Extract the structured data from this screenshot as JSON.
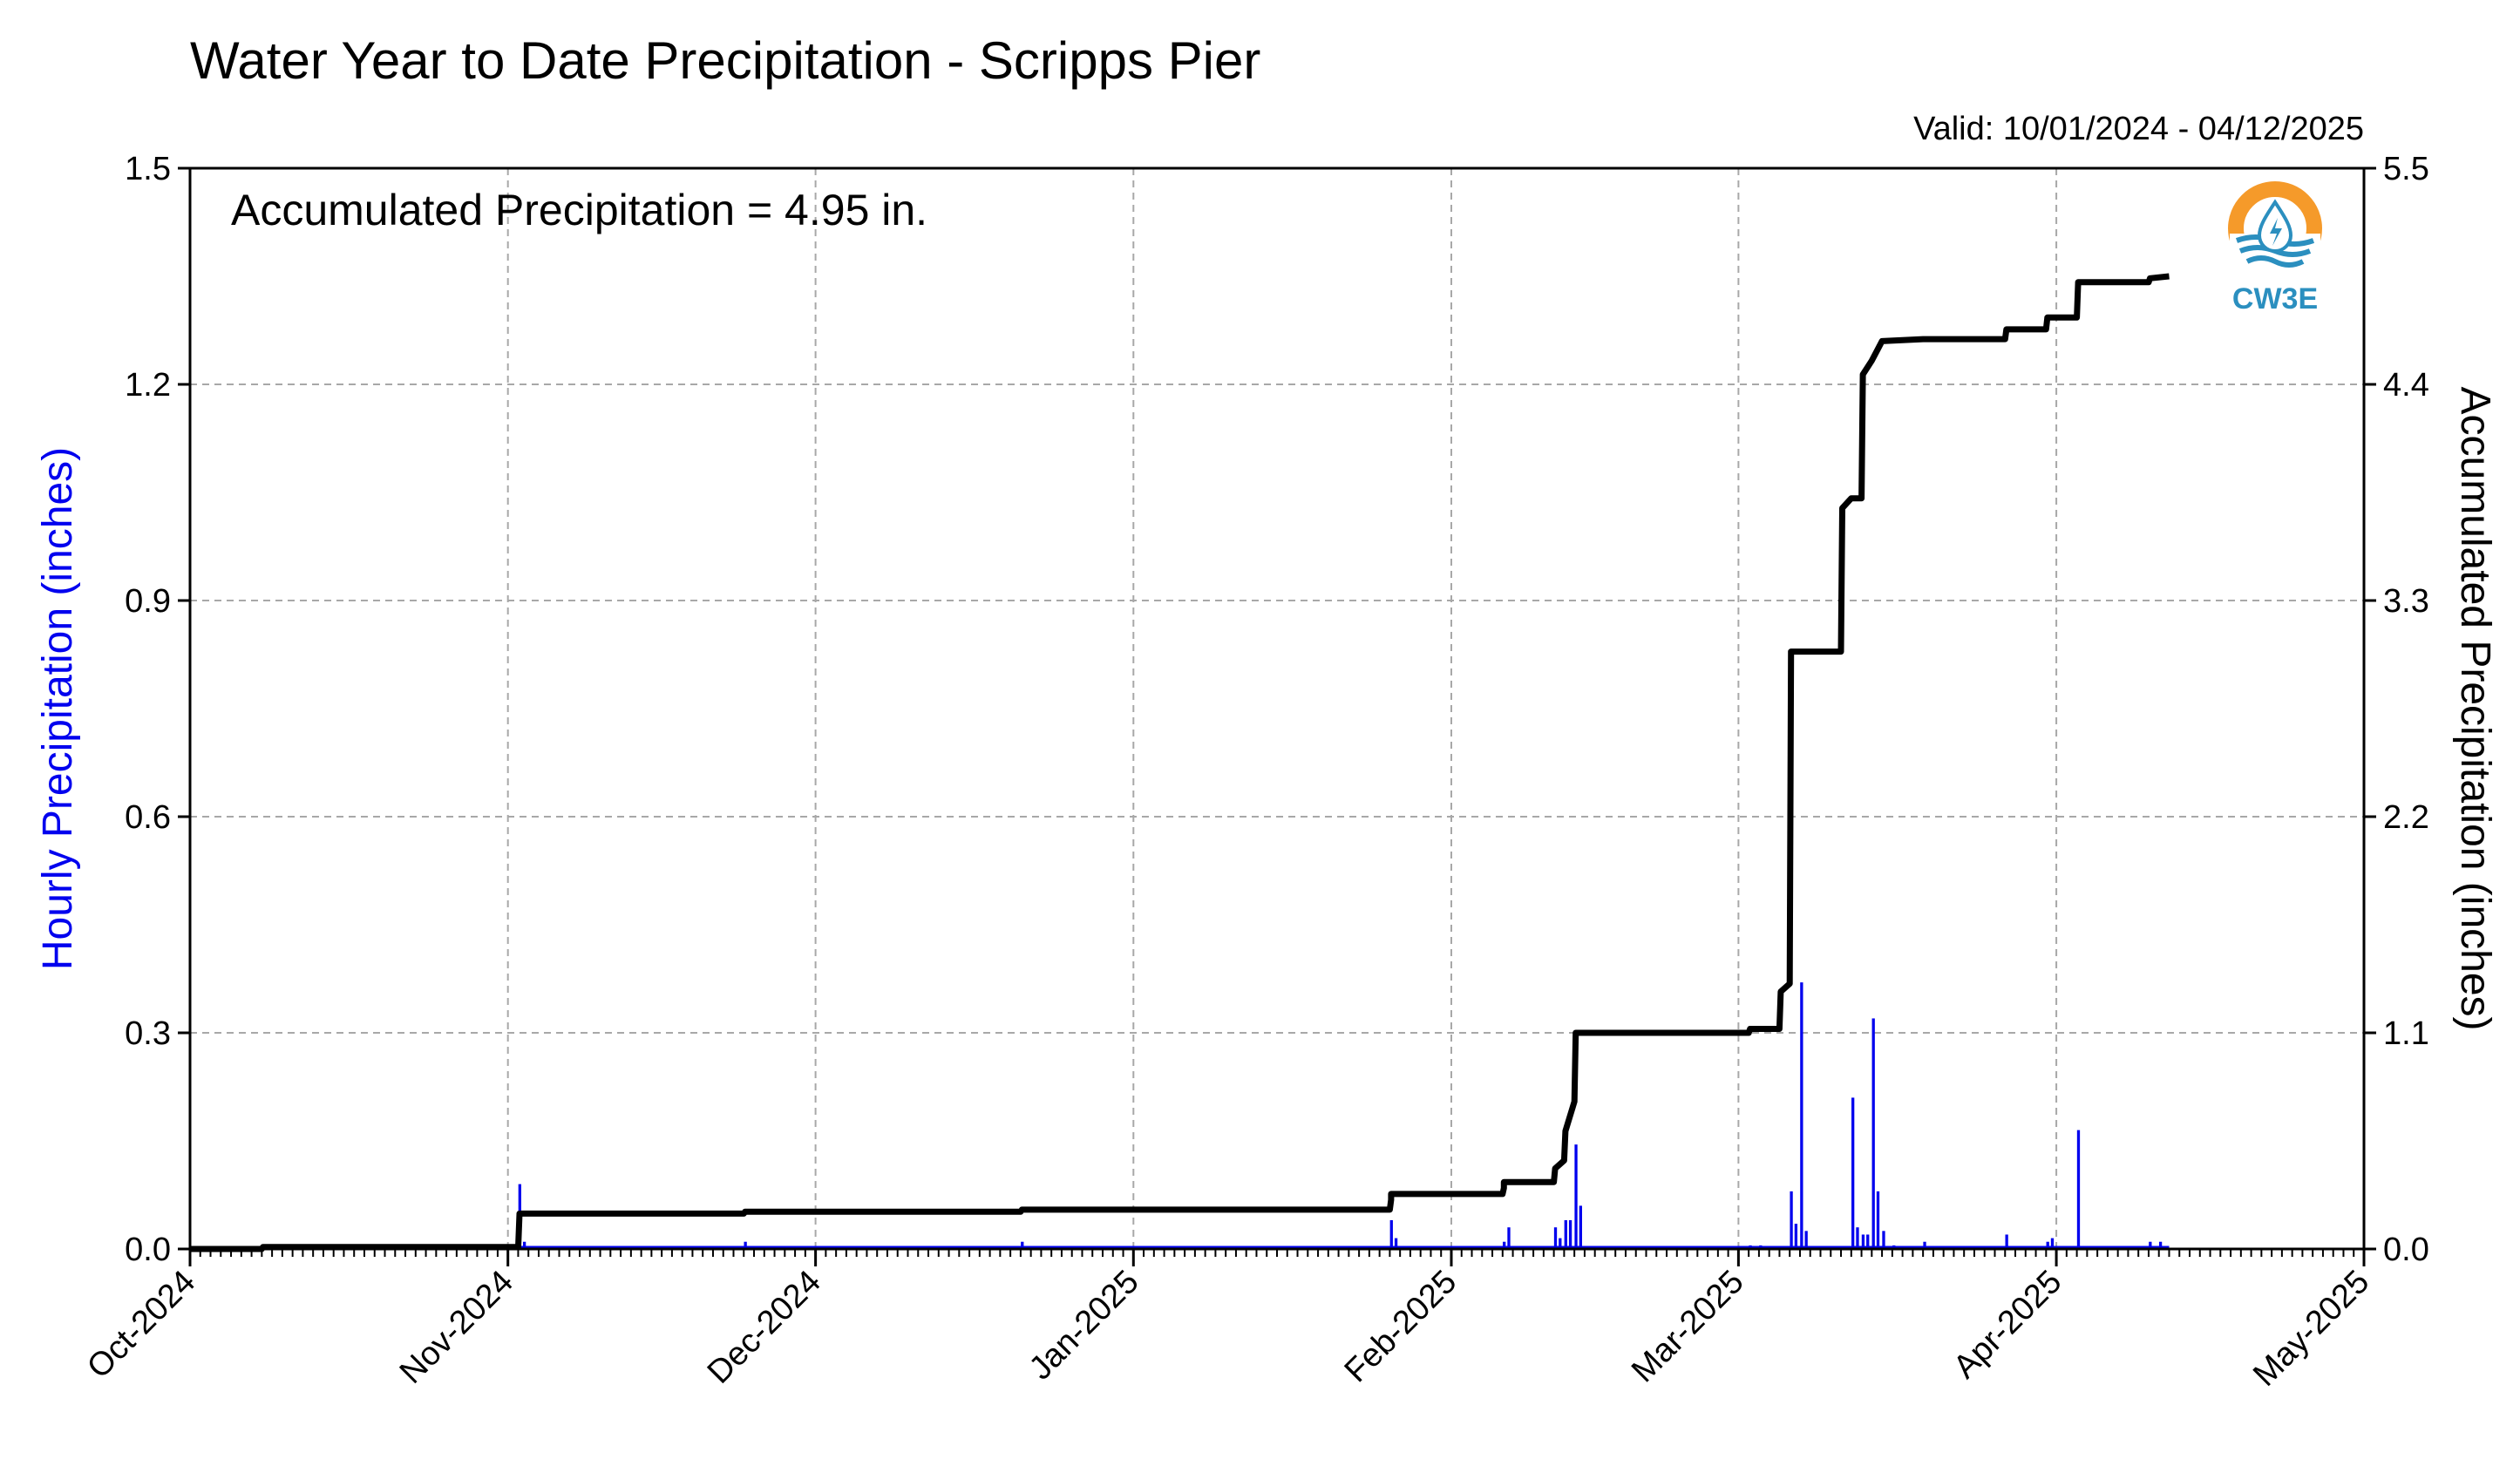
{
  "chart_data": {
    "type": "bar+line",
    "title": "Water Year to Date Precipitation - Scripps Pier",
    "valid_text": "Valid: 10/01/2024 - 04/12/2025",
    "annotation": "Accumulated Precipitation = 4.95 in.",
    "ylabel_left": "Hourly Precipitation (inches)",
    "ylabel_right": "Accumulated Precipitation (inches)",
    "ylim_left": [
      0,
      1.5
    ],
    "ylim_right": [
      0,
      5.5
    ],
    "yticks_left": [
      "0.0",
      "0.3",
      "0.6",
      "0.9",
      "1.2",
      "1.5"
    ],
    "yticks_right": [
      "0.0",
      "1.1",
      "2.2",
      "3.3",
      "4.4",
      "5.5"
    ],
    "x_range": [
      "2024-10-01",
      "2025-05-01"
    ],
    "x_ticks": [
      {
        "date": "2024-10-01",
        "label": "Oct-2024"
      },
      {
        "date": "2024-11-01",
        "label": "Nov-2024"
      },
      {
        "date": "2024-12-01",
        "label": "Dec-2024"
      },
      {
        "date": "2025-01-01",
        "label": "Jan-2025"
      },
      {
        "date": "2025-02-01",
        "label": "Feb-2025"
      },
      {
        "date": "2025-03-01",
        "label": "Mar-2025"
      },
      {
        "date": "2025-04-01",
        "label": "Apr-2025"
      },
      {
        "date": "2025-05-01",
        "label": "May-2025"
      }
    ],
    "grid": true,
    "legend": "none",
    "colors": {
      "hourly": "#0000ee",
      "accumulated": "#000000",
      "logo_orange": "#f59a2a",
      "logo_blue": "#2b8fbf"
    },
    "hourly_series": {
      "name": "Hourly Precipitation",
      "points": [
        [
          "2024-11-02",
          0.09
        ],
        [
          "2024-11-02",
          0.01
        ],
        [
          "2024-11-24",
          0.01
        ],
        [
          "2024-12-21",
          0.01
        ],
        [
          "2025-01-26",
          0.04
        ],
        [
          "2025-01-26",
          0.015
        ],
        [
          "2025-02-06",
          0.01
        ],
        [
          "2025-02-06",
          0.03
        ],
        [
          "2025-02-11",
          0.03
        ],
        [
          "2025-02-11",
          0.015
        ],
        [
          "2025-02-12",
          0.04
        ],
        [
          "2025-02-12",
          0.04
        ],
        [
          "2025-02-13",
          0.145
        ],
        [
          "2025-02-13",
          0.06
        ],
        [
          "2025-03-02",
          0.005
        ],
        [
          "2025-03-03",
          0.005
        ],
        [
          "2025-03-06",
          0.08
        ],
        [
          "2025-03-06",
          0.035
        ],
        [
          "2025-03-07",
          0.37
        ],
        [
          "2025-03-07",
          0.025
        ],
        [
          "2025-03-12",
          0.21
        ],
        [
          "2025-03-12",
          0.03
        ],
        [
          "2025-03-13",
          0.02
        ],
        [
          "2025-03-13",
          0.02
        ],
        [
          "2025-03-14",
          0.32
        ],
        [
          "2025-03-14",
          0.08
        ],
        [
          "2025-03-15",
          0.025
        ],
        [
          "2025-03-16",
          0.005
        ],
        [
          "2025-03-19",
          0.01
        ],
        [
          "2025-03-27",
          0.02
        ],
        [
          "2025-03-31",
          0.01
        ],
        [
          "2025-03-31",
          0.015
        ],
        [
          "2025-04-03",
          0.165
        ],
        [
          "2025-04-10",
          0.01
        ],
        [
          "2025-04-11",
          0.01
        ]
      ]
    },
    "accumulated_series": {
      "name": "Accumulated Precipitation",
      "points": [
        [
          "2024-10-01",
          0.0
        ],
        [
          "2024-10-08",
          0.0
        ],
        [
          "2024-10-08",
          0.01
        ],
        [
          "2024-11-02",
          0.01
        ],
        [
          "2024-11-02",
          0.18
        ],
        [
          "2024-11-24",
          0.18
        ],
        [
          "2024-11-24",
          0.19
        ],
        [
          "2024-12-21",
          0.19
        ],
        [
          "2024-12-21",
          0.2
        ],
        [
          "2025-01-26",
          0.2
        ],
        [
          "2025-01-26",
          0.25
        ],
        [
          "2025-01-26",
          0.28
        ],
        [
          "2025-02-06",
          0.28
        ],
        [
          "2025-02-06",
          0.31
        ],
        [
          "2025-02-06",
          0.34
        ],
        [
          "2025-02-11",
          0.34
        ],
        [
          "2025-02-11",
          0.41
        ],
        [
          "2025-02-12",
          0.45
        ],
        [
          "2025-02-12",
          0.6
        ],
        [
          "2025-02-13",
          0.75
        ],
        [
          "2025-02-13",
          1.1
        ],
        [
          "2025-03-02",
          1.1
        ],
        [
          "2025-03-02",
          1.12
        ],
        [
          "2025-03-05",
          1.12
        ],
        [
          "2025-03-05",
          1.31
        ],
        [
          "2025-03-06",
          1.35
        ],
        [
          "2025-03-06",
          3.04
        ],
        [
          "2025-03-11",
          3.04
        ],
        [
          "2025-03-11",
          3.77
        ],
        [
          "2025-03-12",
          3.82
        ],
        [
          "2025-03-13",
          3.82
        ],
        [
          "2025-03-13",
          4.45
        ],
        [
          "2025-03-14",
          4.52
        ],
        [
          "2025-03-15",
          4.62
        ],
        [
          "2025-03-19",
          4.63
        ],
        [
          "2025-03-27",
          4.63
        ],
        [
          "2025-03-27",
          4.68
        ],
        [
          "2025-03-31",
          4.68
        ],
        [
          "2025-03-31",
          4.74
        ],
        [
          "2025-04-03",
          4.74
        ],
        [
          "2025-04-03",
          4.92
        ],
        [
          "2025-04-10",
          4.92
        ],
        [
          "2025-04-10",
          4.94
        ],
        [
          "2025-04-12",
          4.95
        ]
      ]
    }
  },
  "logo": {
    "text": "CW3E"
  }
}
